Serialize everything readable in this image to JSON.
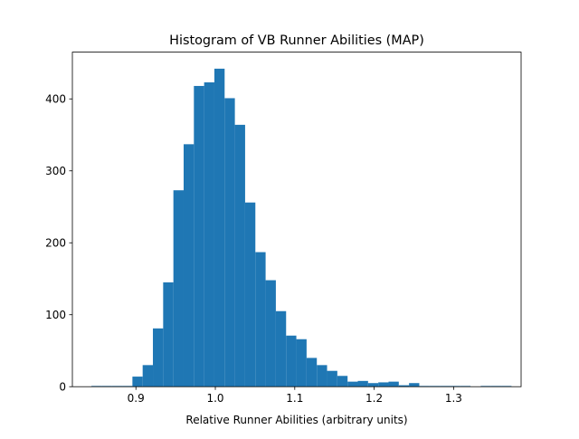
{
  "chart_data": {
    "type": "bar",
    "title": "Histogram of VB Runner Abilities (MAP)",
    "xlabel": "Relative Runner Abilities (arbitrary units)",
    "ylabel": "",
    "xlim": [
      0.82,
      1.385
    ],
    "ylim": [
      0,
      465
    ],
    "xticks": [
      0.9,
      1.0,
      1.1,
      1.2,
      1.3
    ],
    "xtick_labels": [
      "0.9",
      "1.0",
      "1.1",
      "1.2",
      "1.3"
    ],
    "yticks": [
      0,
      100,
      200,
      300,
      400
    ],
    "ytick_labels": [
      "0",
      "100",
      "200",
      "300",
      "400"
    ],
    "bar_color": "#1f77b4",
    "grid": false,
    "bin_edges": [
      0.844,
      0.8569,
      0.8698,
      0.8827,
      0.8956,
      0.9085,
      0.9214,
      0.9343,
      0.9472,
      0.9601,
      0.973,
      0.9859,
      0.9988,
      1.0117,
      1.0246,
      1.0375,
      1.0504,
      1.0633,
      1.0762,
      1.0891,
      1.102,
      1.1149,
      1.1278,
      1.1407,
      1.1536,
      1.1665,
      1.1794,
      1.1923,
      1.2052,
      1.2181,
      1.231,
      1.2439,
      1.2568,
      1.2697,
      1.2826,
      1.2955,
      1.3084,
      1.3213,
      1.3342,
      1.3471,
      1.36,
      1.3729
    ],
    "counts": [
      1,
      1,
      1,
      1,
      14,
      30,
      81,
      145,
      273,
      337,
      418,
      423,
      442,
      401,
      364,
      256,
      187,
      148,
      105,
      71,
      66,
      40,
      30,
      22,
      15,
      7,
      8,
      5,
      6,
      7,
      2,
      5,
      1,
      1,
      1,
      1,
      1,
      0,
      1,
      1,
      1
    ]
  }
}
